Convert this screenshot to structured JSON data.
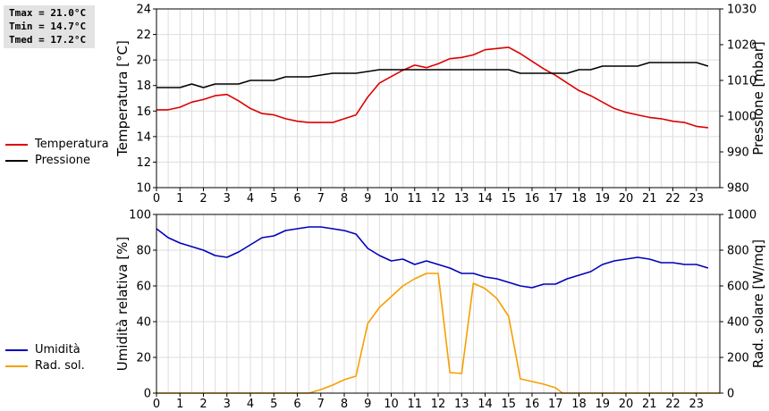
{
  "stats_box": {
    "tmax": "Tmax = 21.0°C",
    "tmin": "Tmin = 14.7°C",
    "tmed": "Tmed = 17.2°C"
  },
  "legends": {
    "top": [
      {
        "label": "Temperatura",
        "color": "#dd0000"
      },
      {
        "label": "Pressione",
        "color": "#000000"
      }
    ],
    "bottom": [
      {
        "label": "Umidità",
        "color": "#0000bb"
      },
      {
        "label": "Rad. sol.",
        "color": "#f5a000"
      }
    ]
  },
  "chart_data": [
    {
      "type": "line",
      "x_ticks": [
        "0",
        "1",
        "2",
        "3",
        "4",
        "5",
        "6",
        "7",
        "8",
        "9",
        "10",
        "11",
        "12",
        "13",
        "14",
        "15",
        "16",
        "17",
        "18",
        "19",
        "20",
        "21",
        "22",
        "23"
      ],
      "xlim": [
        0,
        24
      ],
      "grid": true,
      "legend_placement": "left",
      "ylabel_left": "Temperatura [°C]",
      "ylim_left": [
        10,
        24
      ],
      "yticks_left": [
        "10",
        "12",
        "14",
        "16",
        "18",
        "20",
        "22",
        "24"
      ],
      "ylabel_right": "Pressione [mbar]",
      "ylim_right": [
        980,
        1030
      ],
      "yticks_right": [
        "980",
        "990",
        "1000",
        "1010",
        "1020",
        "1030"
      ],
      "series": [
        {
          "name": "Temperatura",
          "axis": "left",
          "color": "#dd0000",
          "x": [
            0,
            0.5,
            1,
            1.5,
            2,
            2.5,
            3,
            3.5,
            4,
            4.5,
            5,
            5.5,
            6,
            6.5,
            7,
            7.5,
            8,
            8.5,
            9,
            9.5,
            10,
            10.5,
            11,
            11.5,
            12,
            12.5,
            13,
            13.5,
            14,
            14.5,
            15,
            15.5,
            16,
            16.5,
            17,
            17.5,
            18,
            18.5,
            19,
            19.5,
            20,
            20.5,
            21,
            21.5,
            22,
            22.5,
            23,
            23.5
          ],
          "y": [
            16.1,
            16.1,
            16.3,
            16.7,
            16.9,
            17.2,
            17.3,
            16.8,
            16.2,
            15.8,
            15.7,
            15.4,
            15.2,
            15.1,
            15.1,
            15.1,
            15.4,
            15.7,
            17.1,
            18.2,
            18.7,
            19.2,
            19.6,
            19.4,
            19.7,
            20.1,
            20.2,
            20.4,
            20.8,
            20.9,
            21.0,
            20.5,
            19.9,
            19.3,
            18.8,
            18.2,
            17.6,
            17.2,
            16.7,
            16.2,
            15.9,
            15.7,
            15.5,
            15.4,
            15.2,
            15.1,
            14.8,
            14.7
          ]
        },
        {
          "name": "Pressione",
          "axis": "right",
          "color": "#000000",
          "x": [
            0,
            1,
            1.5,
            2,
            2.5,
            3.5,
            4,
            5,
            5.5,
            6.5,
            7.5,
            8.5,
            9.5,
            10,
            10.5,
            11,
            11.5,
            12,
            12.5,
            13,
            13.5,
            14,
            14.5,
            15,
            15.5,
            16,
            16.5,
            17.5,
            18,
            18.5,
            19,
            19.5,
            20,
            20.5,
            21,
            21.5,
            22,
            22.5,
            23,
            23.5
          ],
          "y": [
            1008,
            1008,
            1009,
            1008,
            1009,
            1009,
            1010,
            1010,
            1011,
            1011,
            1012,
            1012,
            1013,
            1013,
            1013,
            1013,
            1013,
            1013,
            1013,
            1013,
            1013,
            1013,
            1013,
            1013,
            1012,
            1012,
            1012,
            1012,
            1013,
            1013,
            1014,
            1014,
            1014,
            1014,
            1015,
            1015,
            1015,
            1015,
            1015,
            1014
          ]
        }
      ]
    },
    {
      "type": "line",
      "x_ticks": [
        "0",
        "1",
        "2",
        "3",
        "4",
        "5",
        "6",
        "7",
        "8",
        "9",
        "10",
        "11",
        "12",
        "13",
        "14",
        "15",
        "16",
        "17",
        "18",
        "19",
        "20",
        "21",
        "22",
        "23"
      ],
      "xlim": [
        0,
        24
      ],
      "grid": true,
      "legend_placement": "left",
      "ylabel_left": "Umidità relativa [%]",
      "ylim_left": [
        0,
        100
      ],
      "yticks_left": [
        "0",
        "20",
        "40",
        "60",
        "80",
        "100"
      ],
      "ylabel_right": "Rad. solare [W/mq]",
      "ylim_right": [
        0,
        1000
      ],
      "yticks_right": [
        "0",
        "200",
        "400",
        "600",
        "800",
        "1000"
      ],
      "series": [
        {
          "name": "Umidità",
          "axis": "left",
          "color": "#0000bb",
          "x": [
            0,
            0.5,
            1,
            1.5,
            2,
            2.5,
            3,
            3.5,
            4,
            4.5,
            5,
            5.5,
            6,
            6.5,
            7,
            7.5,
            8,
            8.5,
            9,
            9.5,
            10,
            10.5,
            11,
            11.5,
            12,
            12.5,
            13,
            13.5,
            14,
            14.5,
            15,
            15.5,
            16,
            16.5,
            17,
            17.5,
            18,
            18.5,
            19,
            19.5,
            20,
            20.5,
            21,
            21.5,
            22,
            22.5,
            23,
            23.5
          ],
          "y": [
            92,
            87,
            84,
            82,
            80,
            77,
            76,
            79,
            83,
            87,
            88,
            91,
            92,
            93,
            93,
            92,
            91,
            89,
            81,
            77,
            74,
            75,
            72,
            74,
            72,
            70,
            67,
            67,
            65,
            64,
            62,
            60,
            59,
            61,
            61,
            64,
            66,
            68,
            72,
            74,
            75,
            76,
            75,
            73,
            73,
            72,
            72,
            70
          ]
        },
        {
          "name": "Rad. sol.",
          "axis": "right",
          "color": "#f5a000",
          "x": [
            0,
            6.5,
            7,
            7.5,
            8,
            8.5,
            9,
            9.5,
            10,
            10.5,
            11,
            11.5,
            12,
            12.5,
            13,
            13.5,
            14,
            14.5,
            15,
            15.5,
            16,
            16.5,
            17,
            17.3,
            24
          ],
          "y": [
            0,
            0,
            20,
            45,
            75,
            95,
            390,
            480,
            540,
            600,
            640,
            670,
            670,
            115,
            110,
            615,
            585,
            530,
            430,
            80,
            65,
            50,
            30,
            0,
            0
          ]
        }
      ]
    }
  ]
}
